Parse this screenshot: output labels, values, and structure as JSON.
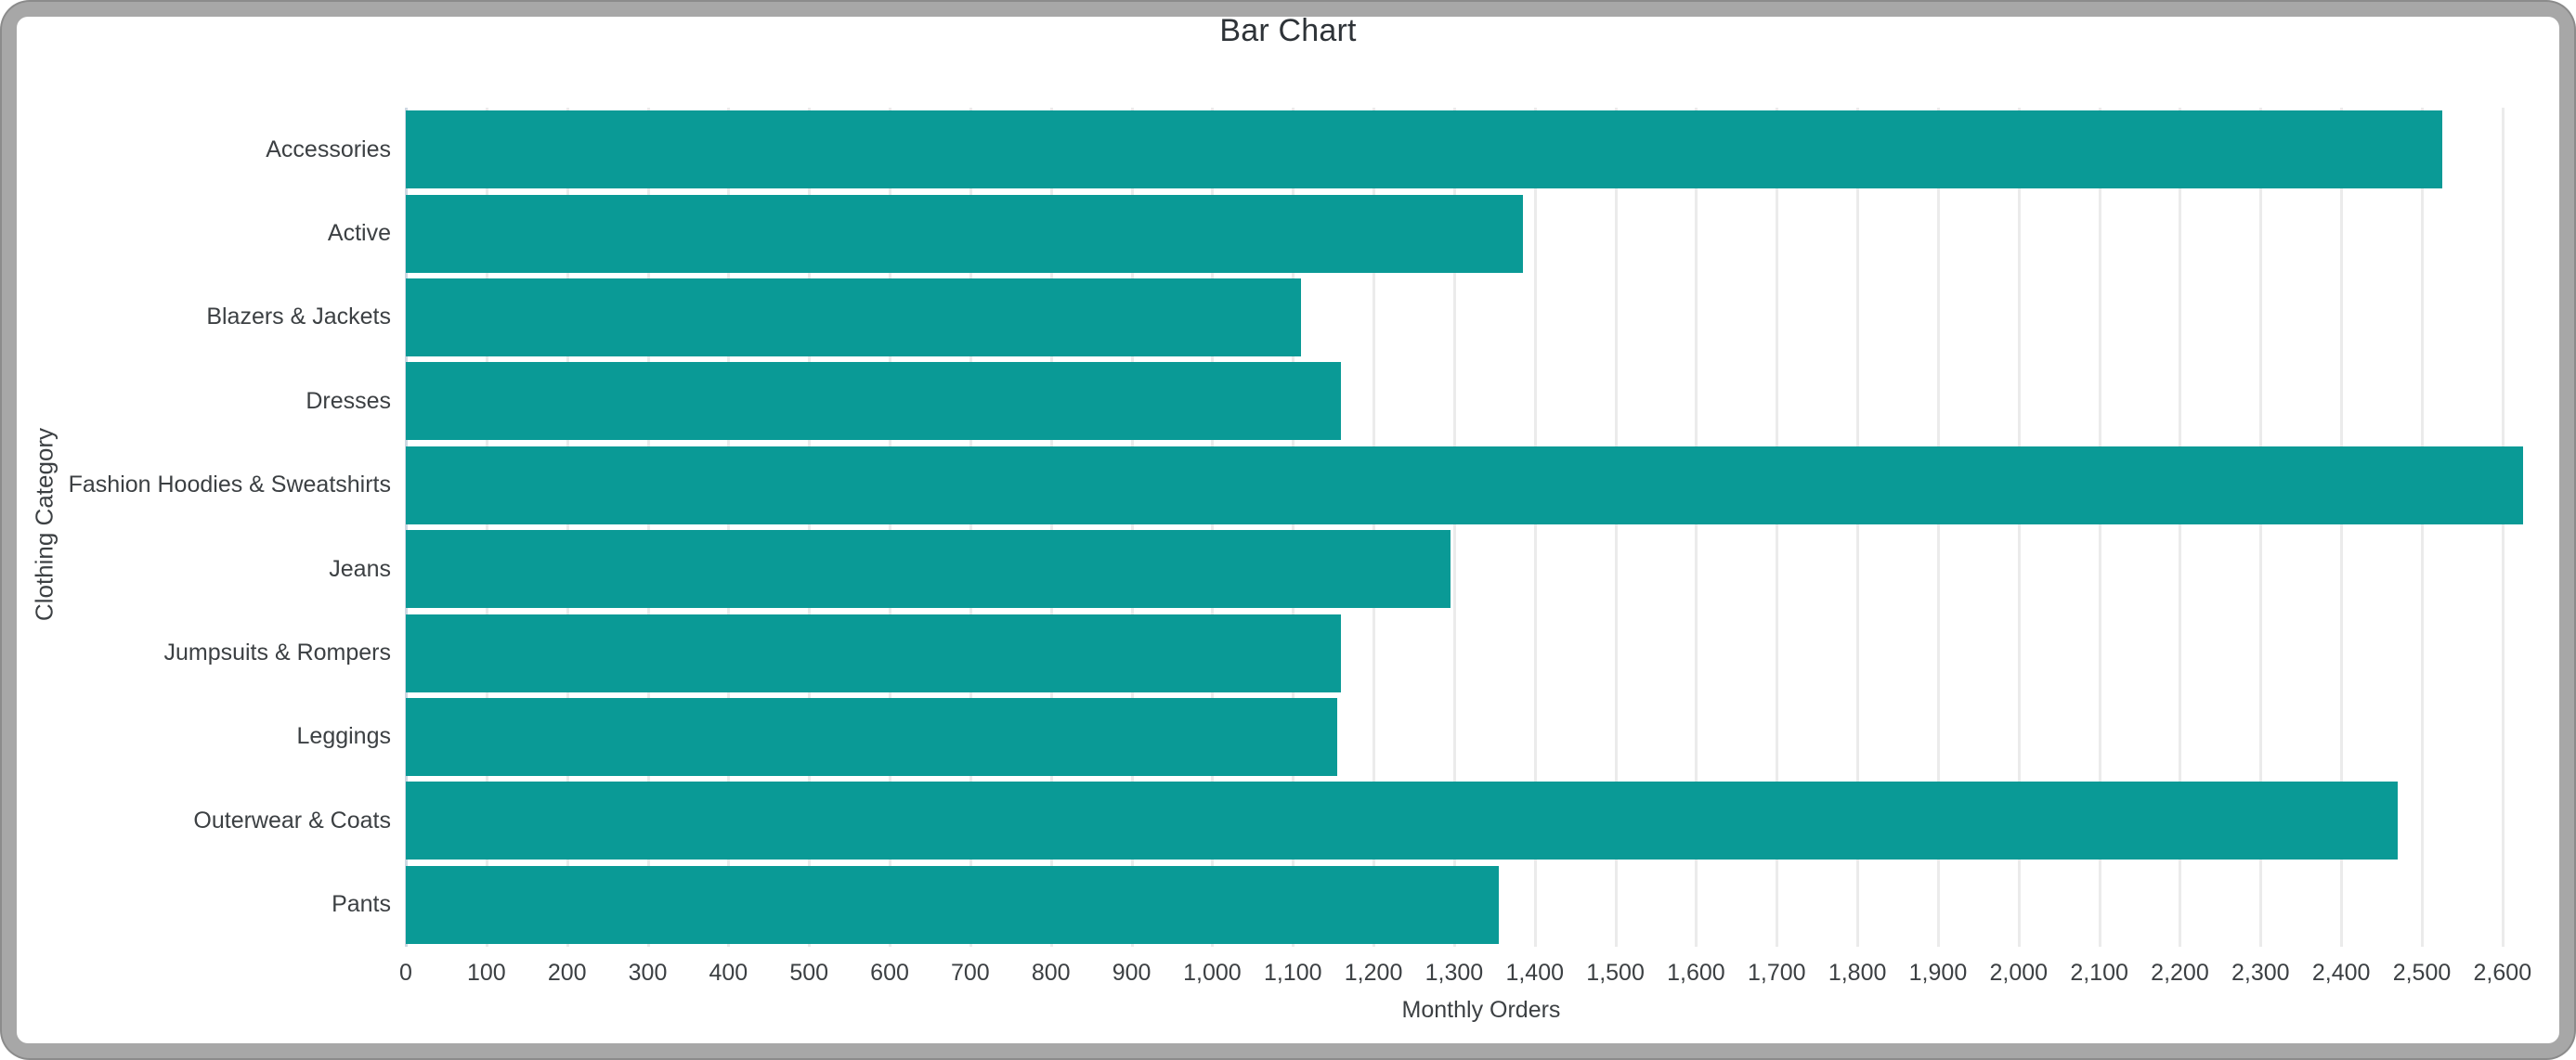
{
  "window": {
    "frame_outer_color": "#8b8b8b",
    "frame_color": "#a7a7a7",
    "background_color": "#ffffff"
  },
  "chart": {
    "title": "Bar Chart",
    "xlabel": "Monthly Orders",
    "ylabel": "Clothing Category"
  },
  "chart_data": {
    "type": "bar",
    "orientation": "horizontal",
    "title": "Bar Chart",
    "xlabel": "Monthly Orders",
    "ylabel": "Clothing Category",
    "categories": [
      "Accessories",
      "Active",
      "Blazers & Jackets",
      "Dresses",
      "Fashion Hoodies & Sweatshirts",
      "Jeans",
      "Jumpsuits & Rompers",
      "Leggings",
      "Outerwear & Coats",
      "Pants"
    ],
    "values": [
      2525,
      1385,
      1110,
      1160,
      2625,
      1295,
      1160,
      1155,
      2470,
      1355
    ],
    "xlim": [
      0,
      2667
    ],
    "xtick_step": 100,
    "xtick_max": 2600,
    "grid": true,
    "legend_position": "none",
    "bar_color": "#0a9a96",
    "gridline_color": "#ebebeb",
    "baseline_color": "#ccd8e2",
    "text_color": "#3c4043"
  }
}
